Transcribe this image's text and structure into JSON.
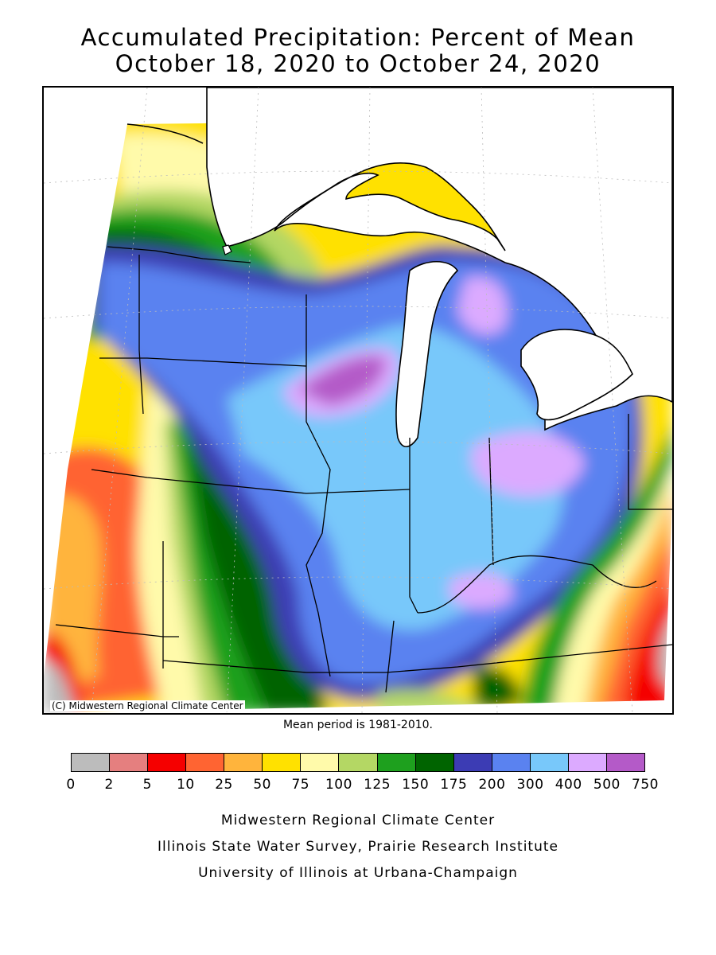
{
  "title": {
    "line1": "Accumulated Precipitation: Percent of Mean",
    "line2": "October 18, 2020 to October 24, 2020"
  },
  "map": {
    "copyright": "(C) Midwestern Regional Climate Center",
    "mean_period_note": "Mean period is 1981-2010."
  },
  "legend": {
    "colors": [
      "#bcbcbc",
      "#e57f7f",
      "#f50000",
      "#ff6432",
      "#ffb43c",
      "#ffe100",
      "#fffaaa",
      "#b4d764",
      "#1ea01e",
      "#006400",
      "#3c3cb4",
      "#5a82f0",
      "#78c8fa",
      "#dcaaff",
      "#b45ac8"
    ],
    "labels": [
      "0",
      "2",
      "5",
      "10",
      "25",
      "50",
      "75",
      "100",
      "125",
      "150",
      "175",
      "200",
      "300",
      "400",
      "500",
      "750"
    ]
  },
  "credits": [
    "Midwestern Regional Climate Center",
    "Illinois State Water Survey, Prairie Research Institute",
    "University of Illinois at Urbana-Champaign"
  ]
}
